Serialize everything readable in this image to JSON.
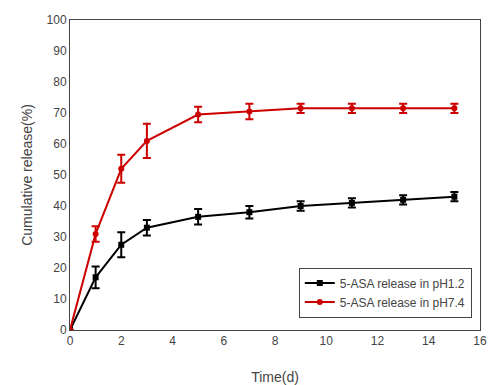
{
  "chart_data": {
    "type": "line",
    "x_label": "Time(d)",
    "y_label": "Cumulative release(%)",
    "x": [
      0,
      1,
      2,
      3,
      5,
      7,
      9,
      11,
      13,
      15
    ],
    "series": [
      {
        "name": "5-ASA release in pH1.2",
        "color": "#000000",
        "marker": "square",
        "values": [
          0,
          17,
          27.5,
          33,
          36.5,
          38,
          40,
          41,
          42,
          43
        ],
        "errors": [
          0,
          3.5,
          4.0,
          2.5,
          2.5,
          2.0,
          1.5,
          1.5,
          1.5,
          1.5
        ]
      },
      {
        "name": "5-ASA release in pH7.4",
        "color": "#cc0000",
        "marker": "circle",
        "values": [
          0,
          31,
          52,
          61,
          69.5,
          70.5,
          71.5,
          71.5,
          71.5,
          71.5
        ],
        "errors": [
          0,
          2.5,
          4.5,
          5.5,
          2.5,
          2.5,
          1.5,
          1.5,
          1.5,
          1.5
        ]
      }
    ],
    "xlim": [
      0,
      16
    ],
    "ylim": [
      0,
      100
    ],
    "xticks": [
      0,
      2,
      4,
      6,
      8,
      10,
      12,
      14,
      16
    ],
    "yticks": [
      0,
      10,
      20,
      30,
      40,
      50,
      60,
      70,
      80,
      90,
      100
    ],
    "grid": false,
    "legend": "lower right"
  }
}
